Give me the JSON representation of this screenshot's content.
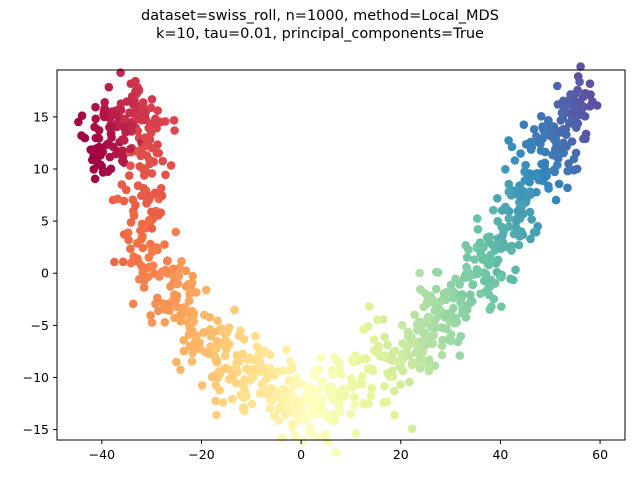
{
  "chart_data": {
    "type": "scatter",
    "title_lines": [
      "dataset=swiss_roll, n=1000, method=Local_MDS",
      "k=10, tau=0.01, principal_components=True"
    ],
    "xlabel": "",
    "ylabel": "",
    "xlim": [
      -49,
      65
    ],
    "ylim": [
      -16,
      19.5
    ],
    "xticks": [
      -40,
      -20,
      0,
      20,
      40,
      60
    ],
    "yticks": [
      -15,
      -10,
      -5,
      0,
      5,
      10,
      15
    ],
    "grid": false,
    "colormap": "Spectral",
    "color_stops": [
      "#9e0142",
      "#d53e4f",
      "#f46d43",
      "#fdae61",
      "#fee08b",
      "#ffffbf",
      "#e6f598",
      "#abdda4",
      "#66c2a5",
      "#3288bd",
      "#5e4fa2"
    ],
    "n_points": 1000,
    "curve_centerline": [
      [
        -42,
        11
      ],
      [
        -39,
        13
      ],
      [
        -35,
        15.5
      ],
      [
        -31.5,
        16.5
      ],
      [
        -31,
        12
      ],
      [
        -32,
        8
      ],
      [
        -33,
        5
      ],
      [
        -30.5,
        2
      ],
      [
        -28,
        -1
      ],
      [
        -24.5,
        -3.5
      ],
      [
        -19,
        -6.5
      ],
      [
        -13,
        -9
      ],
      [
        -8,
        -10.5
      ],
      [
        -3,
        -12
      ],
      [
        2,
        -12.3
      ],
      [
        7,
        -12
      ],
      [
        12,
        -11
      ],
      [
        18,
        -8.5
      ],
      [
        24,
        -6
      ],
      [
        30,
        -3.5
      ],
      [
        36,
        -0.5
      ],
      [
        42,
        4
      ],
      [
        46,
        8.5
      ],
      [
        50,
        12
      ],
      [
        54,
        15
      ],
      [
        58,
        17
      ]
    ],
    "cluster_ranges": [
      {
        "region": "left arm (red)",
        "x": [
          -43,
          -26
        ],
        "y": [
          -3,
          18
        ]
      },
      {
        "region": "bottom (yellow)",
        "x": [
          -25,
          20
        ],
        "y": [
          -14.5,
          -4
        ]
      },
      {
        "region": "right arm (green-blue)",
        "x": [
          20,
          60
        ],
        "y": [
          -12,
          18
        ]
      }
    ]
  }
}
